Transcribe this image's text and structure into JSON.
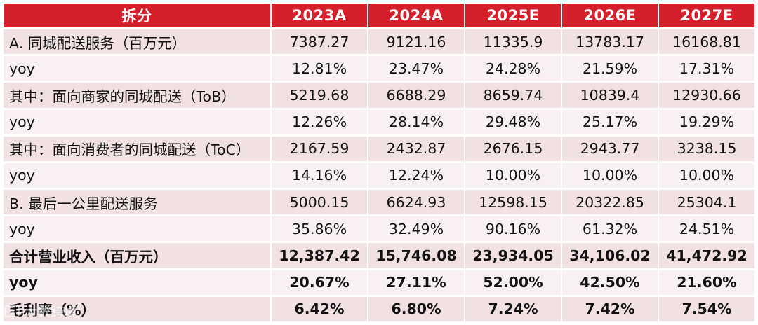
{
  "table": {
    "headers": [
      "拆分",
      "2023A",
      "2024A",
      "2025E",
      "2026E",
      "2027E"
    ],
    "rows": [
      {
        "label": "A. 同城配送服务（百万元）",
        "values": [
          "7387.27",
          "9121.16",
          "11335.9",
          "13783.17",
          "16168.81"
        ],
        "bold": false
      },
      {
        "label": "yoy",
        "values": [
          "12.81%",
          "23.47%",
          "24.28%",
          "21.59%",
          "17.31%"
        ],
        "bold": false
      },
      {
        "label": "其中：面向商家的同城配送（ToB）",
        "values": [
          "5219.68",
          "6688.29",
          "8659.74",
          "10839.4",
          "12930.66"
        ],
        "bold": false
      },
      {
        "label": "yoy",
        "values": [
          "12.26%",
          "28.14%",
          "29.48%",
          "25.17%",
          "19.29%"
        ],
        "bold": false
      },
      {
        "label": "其中：面向消费者的同城配送（ToC）",
        "values": [
          "2167.59",
          "2432.87",
          "2676.15",
          "2943.77",
          "3238.15"
        ],
        "bold": false
      },
      {
        "label": "yoy",
        "values": [
          "14.16%",
          "12.24%",
          "10.00%",
          "10.00%",
          "10.00%"
        ],
        "bold": false
      },
      {
        "label": "B. 最后一公里配送服务",
        "values": [
          "5000.15",
          "6624.93",
          "12598.15",
          "20322.85",
          "25304.1"
        ],
        "bold": false
      },
      {
        "label": "yoy",
        "values": [
          "35.86%",
          "32.49%",
          "90.16%",
          "61.32%",
          "24.51%"
        ],
        "bold": false
      },
      {
        "label": "合计营业收入（百万元）",
        "values": [
          "12,387.42",
          "15,746.08",
          "23,934.05",
          "34,106.02",
          "41,472.92"
        ],
        "bold": true
      },
      {
        "label": "yoy",
        "values": [
          "20.67%",
          "27.11%",
          "52.00%",
          "42.50%",
          "21.60%"
        ],
        "bold": true
      },
      {
        "label": "毛利率（%）",
        "values": [
          "6.42%",
          "6.80%",
          "7.24%",
          "7.42%",
          "7.54%"
        ],
        "bold": true
      }
    ]
  },
  "watermark": {
    "text": "大数跨境",
    "icon": "camera-icon"
  },
  "colors": {
    "header_bg": "#d51f2b",
    "row_pink": "#f2e1e3",
    "row_light": "#f9f0f1"
  }
}
